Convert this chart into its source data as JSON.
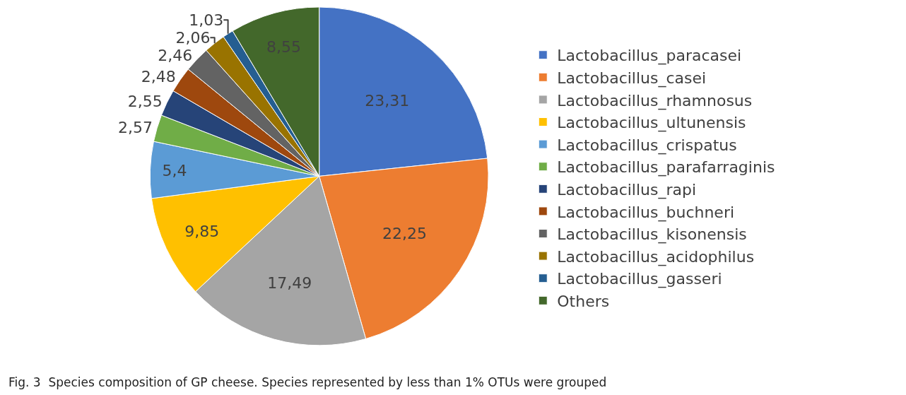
{
  "chart_data": {
    "type": "pie",
    "categories": [
      "Lactobacillus_paracasei",
      "Lactobacillus_casei",
      "Lactobacillus_rhamnosus",
      "Lactobacillus_ultunensis",
      "Lactobacillus_crispatus",
      "Lactobacillus_parafarraginis",
      "Lactobacillus_rapi",
      "Lactobacillus_buchneri",
      "Lactobacillus_kisonensis",
      "Lactobacillus_acidophilus",
      "Lactobacillus_gasseri",
      "Others"
    ],
    "values": [
      23.31,
      22.25,
      17.49,
      9.85,
      5.4,
      2.57,
      2.55,
      2.48,
      2.46,
      2.06,
      1.03,
      8.55
    ],
    "value_labels": [
      "23,31",
      "22,25",
      "17,49",
      "9,85",
      "5,4",
      "2,57",
      "2,55",
      "2,48",
      "2,46",
      "2,06",
      "1,03",
      "8,55"
    ],
    "colors": [
      "#4472c4",
      "#ed7d31",
      "#a5a5a5",
      "#ffc000",
      "#5b9bd5",
      "#70ad47",
      "#264478",
      "#9e480e",
      "#636363",
      "#997300",
      "#255e91",
      "#43682b"
    ],
    "legend": "right",
    "annotations": [
      "Fig. 3  Species composition of GP cheese. Species represented by less than 1% OTUs were grouped"
    ]
  }
}
